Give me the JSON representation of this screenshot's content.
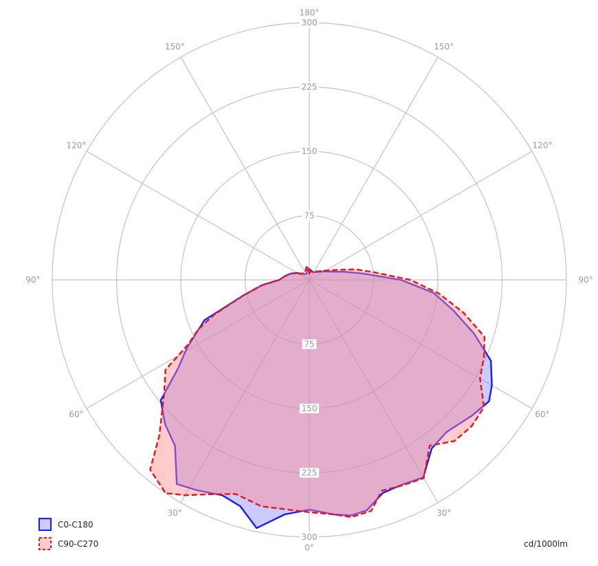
{
  "chart_data": {
    "type": "polar-area",
    "unit_label": "cd/1000lm",
    "radial_axis": {
      "range": [
        0,
        300
      ],
      "rings": [
        75,
        150,
        225,
        300
      ],
      "ring_labels": [
        "75",
        "150",
        "225",
        "300"
      ]
    },
    "angular_axis": {
      "labels": [
        {
          "angle": 0,
          "text": "0°"
        },
        {
          "angle": 30,
          "text": "30°"
        },
        {
          "angle": 60,
          "text": "60°"
        },
        {
          "angle": 90,
          "text": "90°"
        },
        {
          "angle": 120,
          "text": "120°"
        },
        {
          "angle": 150,
          "text": "150°"
        },
        {
          "angle": 180,
          "text": "180°"
        },
        {
          "angle": -30,
          "text": "30°"
        },
        {
          "angle": -60,
          "text": "60°"
        },
        {
          "angle": -90,
          "text": "90°"
        },
        {
          "angle": -120,
          "text": "120°"
        },
        {
          "angle": -150,
          "text": "150°"
        }
      ]
    },
    "legend_placement": "bottom-left",
    "series": [
      {
        "name": "C0-C180",
        "color": "#1a1aff",
        "fill": "rgba(130,130,255,0.42)",
        "dash": "",
        "points": [
          [
            180,
            7
          ],
          [
            177,
            13
          ],
          [
            173,
            14
          ],
          [
            168,
            12
          ],
          [
            162,
            9
          ],
          [
            154,
            8
          ],
          [
            146,
            8
          ],
          [
            138,
            9
          ],
          [
            130,
            11
          ],
          [
            120,
            16
          ],
          [
            110,
            22
          ],
          [
            100,
            28
          ],
          [
            90,
            35
          ],
          [
            84,
            54
          ],
          [
            77,
            78
          ],
          [
            69,
            131
          ],
          [
            61,
            163
          ],
          [
            56,
            185
          ],
          [
            51,
            223
          ],
          [
            45,
            238
          ],
          [
            39,
            249
          ],
          [
            33,
            284
          ],
          [
            28,
            278
          ],
          [
            22,
            271
          ],
          [
            17,
            276
          ],
          [
            12,
            296
          ],
          [
            6,
            275
          ],
          [
            0,
            268
          ],
          [
            -6,
            275
          ],
          [
            -10,
            279
          ],
          [
            -14,
            277
          ],
          [
            -19,
            263
          ],
          [
            -24,
            262
          ],
          [
            -30,
            266
          ],
          [
            -36,
            243
          ],
          [
            -42,
            239
          ],
          [
            -50,
            247
          ],
          [
            -56,
            253
          ],
          [
            -60,
            246
          ],
          [
            -66,
            232
          ],
          [
            -72,
            202
          ],
          [
            -78,
            172
          ],
          [
            -84,
            146
          ],
          [
            -90,
            107
          ],
          [
            -97,
            62
          ],
          [
            -103,
            42
          ],
          [
            -110,
            28
          ],
          [
            -120,
            20
          ],
          [
            -132,
            14
          ],
          [
            -145,
            11
          ],
          [
            -158,
            10
          ],
          [
            -168,
            11
          ],
          [
            -175,
            12
          ],
          [
            -180,
            7
          ]
        ]
      },
      {
        "name": "C90-C270",
        "color": "#e8141a",
        "fill": "rgba(255,140,140,0.45)",
        "dash": "8,4",
        "points": [
          [
            180,
            7
          ],
          [
            177,
            13
          ],
          [
            173,
            16
          ],
          [
            166,
            15
          ],
          [
            158,
            12
          ],
          [
            150,
            10
          ],
          [
            142,
            10
          ],
          [
            134,
            11
          ],
          [
            126,
            12
          ],
          [
            118,
            16
          ],
          [
            110,
            22
          ],
          [
            100,
            28
          ],
          [
            90,
            35
          ],
          [
            83,
            58
          ],
          [
            76,
            82
          ],
          [
            70,
            118
          ],
          [
            66,
            142
          ],
          [
            62,
            160
          ],
          [
            58,
            198
          ],
          [
            52,
            215
          ],
          [
            44,
            252
          ],
          [
            40,
            289
          ],
          [
            34,
            300
          ],
          [
            30,
            290
          ],
          [
            25,
            276
          ],
          [
            19,
            264
          ],
          [
            12,
            270
          ],
          [
            6,
            269
          ],
          [
            0,
            271
          ],
          [
            -6,
            275
          ],
          [
            -10,
            281
          ],
          [
            -15,
            279
          ],
          [
            -19,
            260
          ],
          [
            -24,
            263
          ],
          [
            -30,
            267
          ],
          [
            -36,
            239
          ],
          [
            -42,
            253
          ],
          [
            -48,
            255
          ],
          [
            -54,
            252
          ],
          [
            -60,
            230
          ],
          [
            -66,
            223
          ],
          [
            -72,
            215
          ],
          [
            -78,
            184
          ],
          [
            -84,
            152
          ],
          [
            -90,
            118
          ],
          [
            -97,
            75
          ],
          [
            -103,
            55
          ],
          [
            -110,
            34
          ],
          [
            -120,
            22
          ],
          [
            -132,
            15
          ],
          [
            -145,
            12
          ],
          [
            -158,
            10
          ],
          [
            -168,
            10
          ],
          [
            -175,
            11
          ],
          [
            -180,
            7
          ]
        ]
      }
    ]
  }
}
